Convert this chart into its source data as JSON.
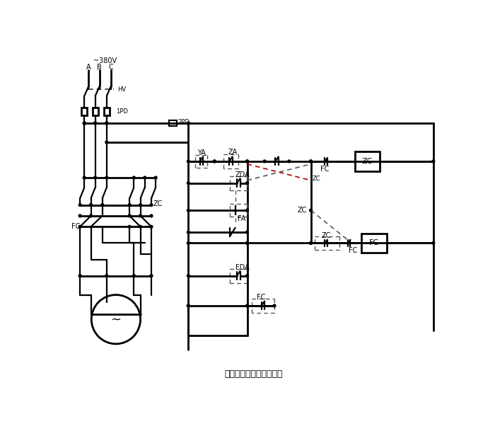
{
  "title": "可逆点动、起动混合控制",
  "title_fontsize": 9,
  "bg_color": "#ffffff",
  "fig_width": 7.0,
  "fig_height": 6.16,
  "power_label": "~380V",
  "phase_labels": [
    "A",
    "B",
    "C"
  ],
  "labels": {
    "HV": "HV",
    "1PD": "1PD",
    "2PD": "2PD",
    "YA": "YA",
    "ZA": "ZA",
    "ZDA": "ZDA",
    "ZC": "ZC",
    "FA": "FA",
    "FDA": "FDA",
    "FC": "FC"
  }
}
